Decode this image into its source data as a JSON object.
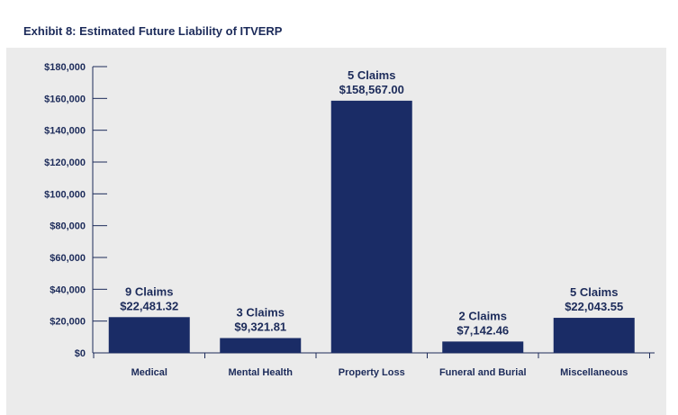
{
  "title": "Exhibit 8: Estimated Future Liability of ITVERP",
  "chart_data": {
    "type": "bar",
    "title": "Exhibit 8: Estimated Future Liability of ITVERP",
    "xlabel": "",
    "ylabel": "",
    "ylim": [
      0,
      180000
    ],
    "yticks": [
      "$0",
      "$20,000",
      "$40,000",
      "$60,000",
      "$80,000",
      "$100,000",
      "$120,000",
      "$140,000",
      "$160,000",
      "$180,000"
    ],
    "ytick_values": [
      0,
      20000,
      40000,
      60000,
      80000,
      100000,
      120000,
      140000,
      160000,
      180000
    ],
    "categories": [
      "Medical",
      "Mental Health",
      "Property Loss",
      "Funeral and Burial",
      "Miscellaneous"
    ],
    "values": [
      22481.32,
      9321.81,
      158567.0,
      7142.46,
      22043.55
    ],
    "claims_labels": [
      "9 Claims",
      "3 Claims",
      "5 Claims",
      "2 Claims",
      "5 Claims"
    ],
    "value_labels": [
      "$22,481.32",
      "$9,321.81",
      "$158,567.00",
      "$7,142.46",
      "$22,043.55"
    ],
    "bar_color": "#1a2c66",
    "axis_color": "#1c2b5a",
    "grid": false,
    "legend": "none"
  }
}
